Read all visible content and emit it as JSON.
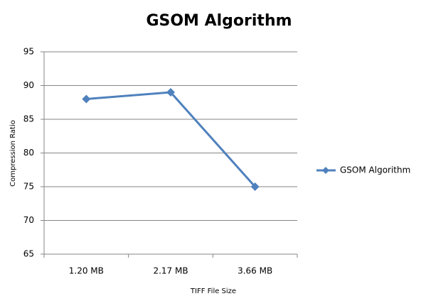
{
  "chart_data": {
    "type": "line",
    "title": "GSOM Algorithm",
    "categories": [
      "1.20 MB",
      "2.17 MB",
      "3.66 MB"
    ],
    "series": [
      {
        "name": "GSOM Algorithm",
        "color": "#4f81bd",
        "values": [
          88,
          89,
          75
        ]
      }
    ],
    "xlabel": "TIFF File Size",
    "ylabel": "Compression Ratio",
    "ylim": [
      65,
      95
    ],
    "yticks": [
      65,
      70,
      75,
      80,
      85,
      90,
      95
    ],
    "grid": true,
    "legend": "right"
  }
}
